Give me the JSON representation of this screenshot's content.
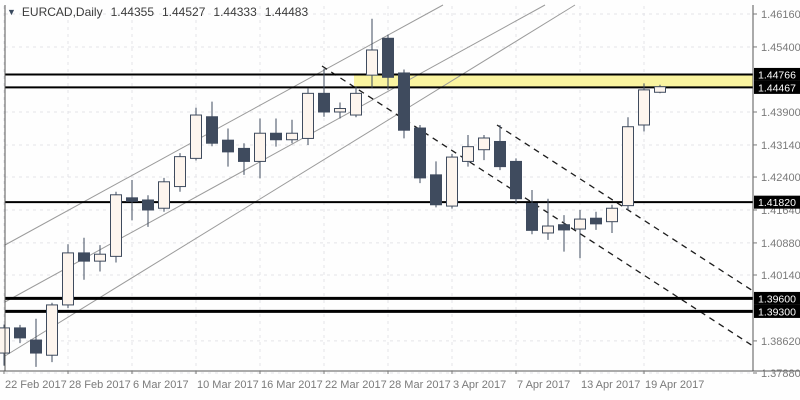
{
  "window": {
    "symbol_timeframe": "EURCAD,Daily",
    "ohlc_display": {
      "open": "1.44355",
      "high": "1.44527",
      "low": "1.44333",
      "close": "1.44483"
    }
  },
  "chart_data": {
    "type": "candlestick",
    "symbol": "EURCAD",
    "timeframe": "Daily",
    "title": "EURCAD,Daily  1.44355 1.44527 1.44333 1.44483",
    "ylim": [
      1.3788,
      1.4616
    ],
    "grid": "dashed",
    "y_axis_ticks": [
      "1.46160",
      "1.45400",
      "1.43900",
      "1.43140",
      "1.42400",
      "1.41640",
      "1.40880",
      "1.40140",
      "1.38620",
      "1.37880"
    ],
    "x_axis_ticks": [
      {
        "label": "22 Feb 2017",
        "candle_index": 0
      },
      {
        "label": "28 Feb 2017",
        "candle_index": 4
      },
      {
        "label": "6 Mar 2017",
        "candle_index": 8
      },
      {
        "label": "10 Mar 2017",
        "candle_index": 12
      },
      {
        "label": "16 Mar 2017",
        "candle_index": 16
      },
      {
        "label": "22 Mar 2017",
        "candle_index": 20
      },
      {
        "label": "28 Mar 2017",
        "candle_index": 24
      },
      {
        "label": "3 Apr 2017",
        "candle_index": 28
      },
      {
        "label": "7 Apr 2017",
        "candle_index": 32
      },
      {
        "label": "13 Apr 2017",
        "candle_index": 36
      },
      {
        "label": "19 Apr 2017",
        "candle_index": 40
      }
    ],
    "candle_fields": [
      "date",
      "open",
      "high",
      "low",
      "close"
    ],
    "candles": [
      [
        "22 Feb",
        1.3834,
        1.39,
        1.3805,
        1.3892
      ],
      [
        "23 Feb",
        1.3892,
        1.3899,
        1.3857,
        1.3869
      ],
      [
        "24 Feb",
        1.3864,
        1.3913,
        1.3802,
        1.3834
      ],
      [
        "27 Feb",
        1.3829,
        1.395,
        1.3813,
        1.3945
      ],
      [
        "28 Feb",
        1.3945,
        1.4085,
        1.3938,
        1.4065
      ],
      [
        "1 Mar",
        1.4065,
        1.41,
        1.4003,
        1.4046
      ],
      [
        "2 Mar",
        1.4046,
        1.4083,
        1.4022,
        1.4062
      ],
      [
        "3 Mar",
        1.4057,
        1.4206,
        1.4043,
        1.4199
      ],
      [
        "6 Mar",
        1.4192,
        1.4233,
        1.414,
        1.4184
      ],
      [
        "7 Mar",
        1.4187,
        1.4198,
        1.4125,
        1.4164
      ],
      [
        "8 Mar",
        1.4168,
        1.4238,
        1.416,
        1.4229
      ],
      [
        "9 Mar",
        1.4218,
        1.4295,
        1.4206,
        1.4287
      ],
      [
        "10 Mar",
        1.4283,
        1.44,
        1.4278,
        1.4383
      ],
      [
        "13 Mar",
        1.4379,
        1.4414,
        1.4311,
        1.4318
      ],
      [
        "14 Mar",
        1.4325,
        1.4352,
        1.4264,
        1.4298
      ],
      [
        "15 Mar",
        1.4306,
        1.4318,
        1.4245,
        1.4276
      ],
      [
        "16 Mar",
        1.4276,
        1.4375,
        1.4237,
        1.4341
      ],
      [
        "17 Mar",
        1.4341,
        1.4375,
        1.431,
        1.4326
      ],
      [
        "20 Mar",
        1.4326,
        1.4372,
        1.4318,
        1.4341
      ],
      [
        "21 Mar",
        1.4329,
        1.4445,
        1.4314,
        1.4433
      ],
      [
        "22 Mar",
        1.4433,
        1.449,
        1.4379,
        1.439
      ],
      [
        "23 Mar",
        1.439,
        1.4412,
        1.4375,
        1.4398
      ],
      [
        "24 Mar",
        1.4383,
        1.4449,
        1.4378,
        1.4433
      ],
      [
        "27 Mar",
        1.4475,
        1.4605,
        1.4446,
        1.4533
      ],
      [
        "28 Mar",
        1.456,
        1.4568,
        1.4441,
        1.447
      ],
      [
        "29 Mar",
        1.448,
        1.4488,
        1.4329,
        1.4348
      ],
      [
        "30 Mar",
        1.4353,
        1.436,
        1.4226,
        1.4238
      ],
      [
        "31 Mar",
        1.4245,
        1.4276,
        1.417,
        1.4176
      ],
      [
        "3 Apr",
        1.4173,
        1.4293,
        1.4167,
        1.4286
      ],
      [
        "4 Apr",
        1.4276,
        1.4337,
        1.4264,
        1.431
      ],
      [
        "5 Apr",
        1.4303,
        1.4337,
        1.4279,
        1.433
      ],
      [
        "6 Apr",
        1.4322,
        1.436,
        1.4256,
        1.4264
      ],
      [
        "7 Apr",
        1.4276,
        1.4283,
        1.4178,
        1.419
      ],
      [
        "10 Apr",
        1.4179,
        1.421,
        1.4108,
        1.4117
      ],
      [
        "11 Apr",
        1.4111,
        1.419,
        1.4095,
        1.4127
      ],
      [
        "12 Apr",
        1.413,
        1.4152,
        1.4068,
        1.4118
      ],
      [
        "13 Apr",
        1.412,
        1.4164,
        1.4053,
        1.4143
      ],
      [
        "14 Apr",
        1.4145,
        1.416,
        1.4118,
        1.4132
      ],
      [
        "17 Apr",
        1.4137,
        1.4176,
        1.4111,
        1.4168
      ],
      [
        "18 Apr",
        1.4174,
        1.4378,
        1.4164,
        1.4356
      ],
      [
        "19 Apr",
        1.436,
        1.4456,
        1.4345,
        1.4441
      ],
      [
        "20 Apr",
        1.44355,
        1.44527,
        1.44333,
        1.44483
      ]
    ],
    "horizontal_lines": [
      {
        "price": 1.44766,
        "label": "1.44766",
        "weight": 2
      },
      {
        "price": 1.44467,
        "label": "1.44467",
        "weight": 2
      },
      {
        "price": 1.4182,
        "label": "1.41820",
        "weight": 2
      },
      {
        "price": 1.396,
        "label": "1.39600",
        "weight": 3
      },
      {
        "price": 1.393,
        "label": "1.39300",
        "weight": 3
      }
    ],
    "highlight_band": {
      "price_top": 1.44766,
      "price_bottom": 1.44467,
      "x_start": 354,
      "x_end": 753,
      "color": "#faf4a0"
    },
    "ascending_trend_lines": [
      {
        "x1": 5,
        "y1": 245,
        "x2": 443,
        "y2": 5
      },
      {
        "x1": 5,
        "y1": 302,
        "x2": 545,
        "y2": 5
      },
      {
        "x1": 5,
        "y1": 356,
        "x2": 575,
        "y2": 5
      }
    ],
    "descending_dashed_lines": [
      {
        "x1": 322,
        "y1": 66,
        "x2": 753,
        "y2": 346
      },
      {
        "x1": 497,
        "y1": 125,
        "x2": 753,
        "y2": 291
      }
    ],
    "legend_position": "none"
  },
  "colors": {
    "background": "#fefefe",
    "bull_fill": "#fdf5ee",
    "bear_fill": "#3f4b5e",
    "candle_outline": "#3f4b5e",
    "grid": "#e4e4e8",
    "axis_text": "#7a7a7a",
    "trend_line": "#9b9b9b",
    "dashed_line": "#1c1c1c",
    "price_line": "#000000",
    "band_fill": "#faf4a0",
    "tag_bg": "#000000",
    "tag_text": "#ffffff",
    "title_text": "#3b3b3b"
  }
}
